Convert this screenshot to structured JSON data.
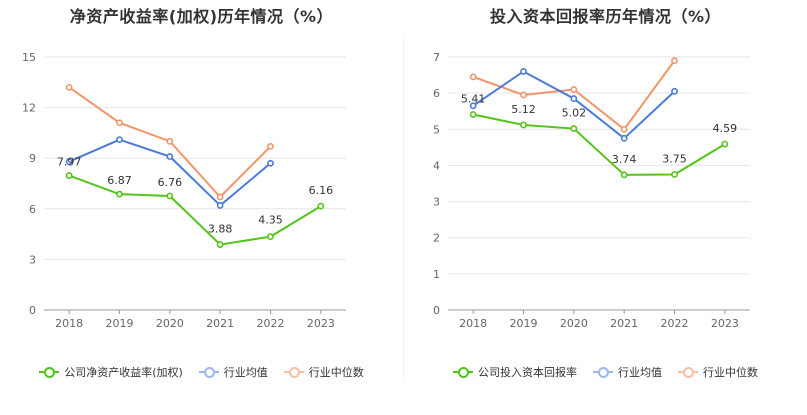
{
  "charts": [
    {
      "title": "净资产收益率(加权)历年情况（%）",
      "legend": [
        "公司净资产收益率(加权)",
        "行业均值",
        "行业中位数"
      ]
    },
    {
      "title": "投入资本回报率历年情况（%）",
      "legend": [
        "公司投入资本回报率",
        "行业均值",
        "行业中位数"
      ]
    }
  ],
  "chart_data": [
    {
      "type": "line",
      "title": "净资产收益率(加权)历年情况（%）",
      "categories": [
        "2018",
        "2019",
        "2020",
        "2021",
        "2022",
        "2023"
      ],
      "ylim": [
        0,
        15
      ],
      "yticks": [
        "0",
        "3",
        "6",
        "9",
        "12",
        "15"
      ],
      "grid": true,
      "legend_position": "bottom",
      "series": [
        {
          "name": "公司净资产收益率(加权)",
          "color": "#52c41a",
          "values": [
            7.97,
            6.87,
            6.76,
            3.88,
            4.35,
            6.16
          ],
          "labels": [
            "7.97",
            "6.87",
            "6.76",
            "3.88",
            "4.35",
            "6.16"
          ]
        },
        {
          "name": "行业均值",
          "color": "#4a7bd9",
          "values": [
            8.8,
            10.1,
            9.1,
            6.2,
            8.7,
            null
          ]
        },
        {
          "name": "行业中位数",
          "color": "#f2956b",
          "values": [
            13.2,
            11.1,
            10.0,
            6.7,
            9.7,
            null
          ]
        }
      ]
    },
    {
      "type": "line",
      "title": "投入资本回报率历年情况（%）",
      "categories": [
        "2018",
        "2019",
        "2020",
        "2021",
        "2022",
        "2023"
      ],
      "ylim": [
        0,
        7
      ],
      "yticks": [
        "0",
        "1",
        "2",
        "3",
        "4",
        "5",
        "6",
        "7"
      ],
      "grid": true,
      "legend_position": "bottom",
      "series": [
        {
          "name": "公司投入资本回报率",
          "color": "#52c41a",
          "values": [
            5.41,
            5.12,
            5.02,
            3.74,
            3.75,
            4.59
          ],
          "labels": [
            "5.41",
            "5.12",
            "5.02",
            "3.74",
            "3.75",
            "4.59"
          ]
        },
        {
          "name": "行业均值",
          "color": "#4a7bd9",
          "values": [
            5.65,
            6.6,
            5.85,
            4.75,
            6.05,
            null
          ]
        },
        {
          "name": "行业中位数",
          "color": "#f2956b",
          "values": [
            6.45,
            5.95,
            6.1,
            5.0,
            6.9,
            null
          ]
        }
      ]
    }
  ]
}
